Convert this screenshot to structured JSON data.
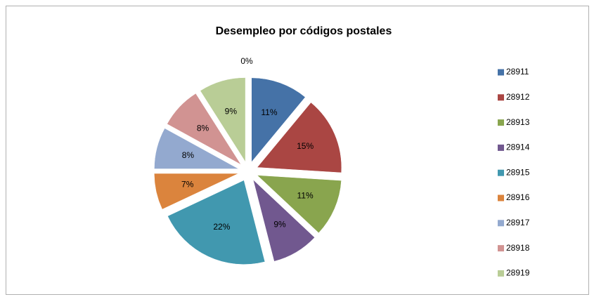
{
  "chart_data": {
    "type": "pie",
    "title": "Desempleo por códigos postales",
    "categories": [
      "28911",
      "28912",
      "28913",
      "28914",
      "28915",
      "28916",
      "28917",
      "28918",
      "28919",
      null
    ],
    "values": [
      11,
      15,
      11,
      9,
      22,
      7,
      8,
      8,
      9,
      0
    ],
    "value_labels": [
      "11%",
      "15%",
      "11%",
      "9%",
      "22%",
      "7%",
      "8%",
      "8%",
      "9%",
      "0%"
    ],
    "colors": [
      "#4572a7",
      "#aa4643",
      "#89a54e",
      "#71588f",
      "#4198af",
      "#db843d",
      "#93a9cf",
      "#d19392",
      "#b9cd96",
      "#2c4d75"
    ],
    "legend": "right"
  }
}
